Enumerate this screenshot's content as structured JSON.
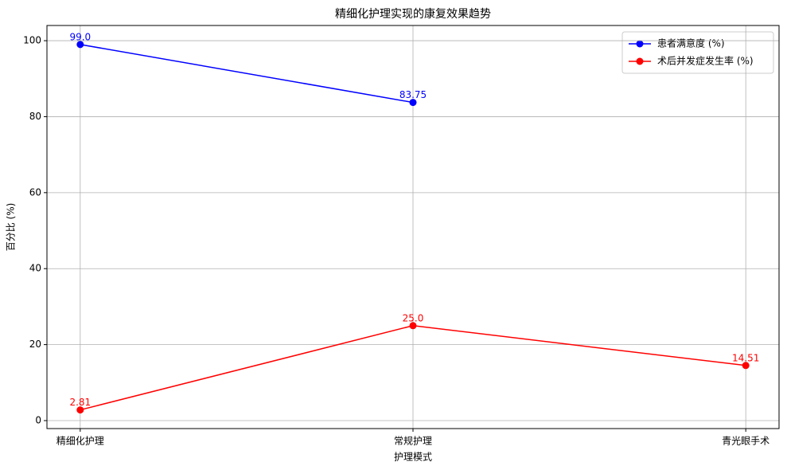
{
  "chart_data": {
    "type": "line",
    "title": "精细化护理实现的康复效果趋势",
    "x_label": "护理模式",
    "y_label": "百分比 (%)",
    "categories": [
      "精细化护理",
      "常规护理",
      "青光眼手术"
    ],
    "series": [
      {
        "name": "患者满意度 (%)",
        "color": "#0000ff",
        "values": [
          99.0,
          83.75,
          null
        ],
        "value_labels": [
          "99.0",
          "83.75",
          null
        ]
      },
      {
        "name": "术后并发症发生率 (%)",
        "color": "#ff0000",
        "values": [
          2.81,
          25.0,
          14.51
        ],
        "value_labels": [
          "2.81",
          "25.0",
          "14.51"
        ]
      }
    ],
    "ylim": [
      -2.1,
      104
    ],
    "yticks": [
      0,
      20,
      40,
      60,
      80,
      100
    ],
    "grid": true,
    "legend": "upper right"
  }
}
